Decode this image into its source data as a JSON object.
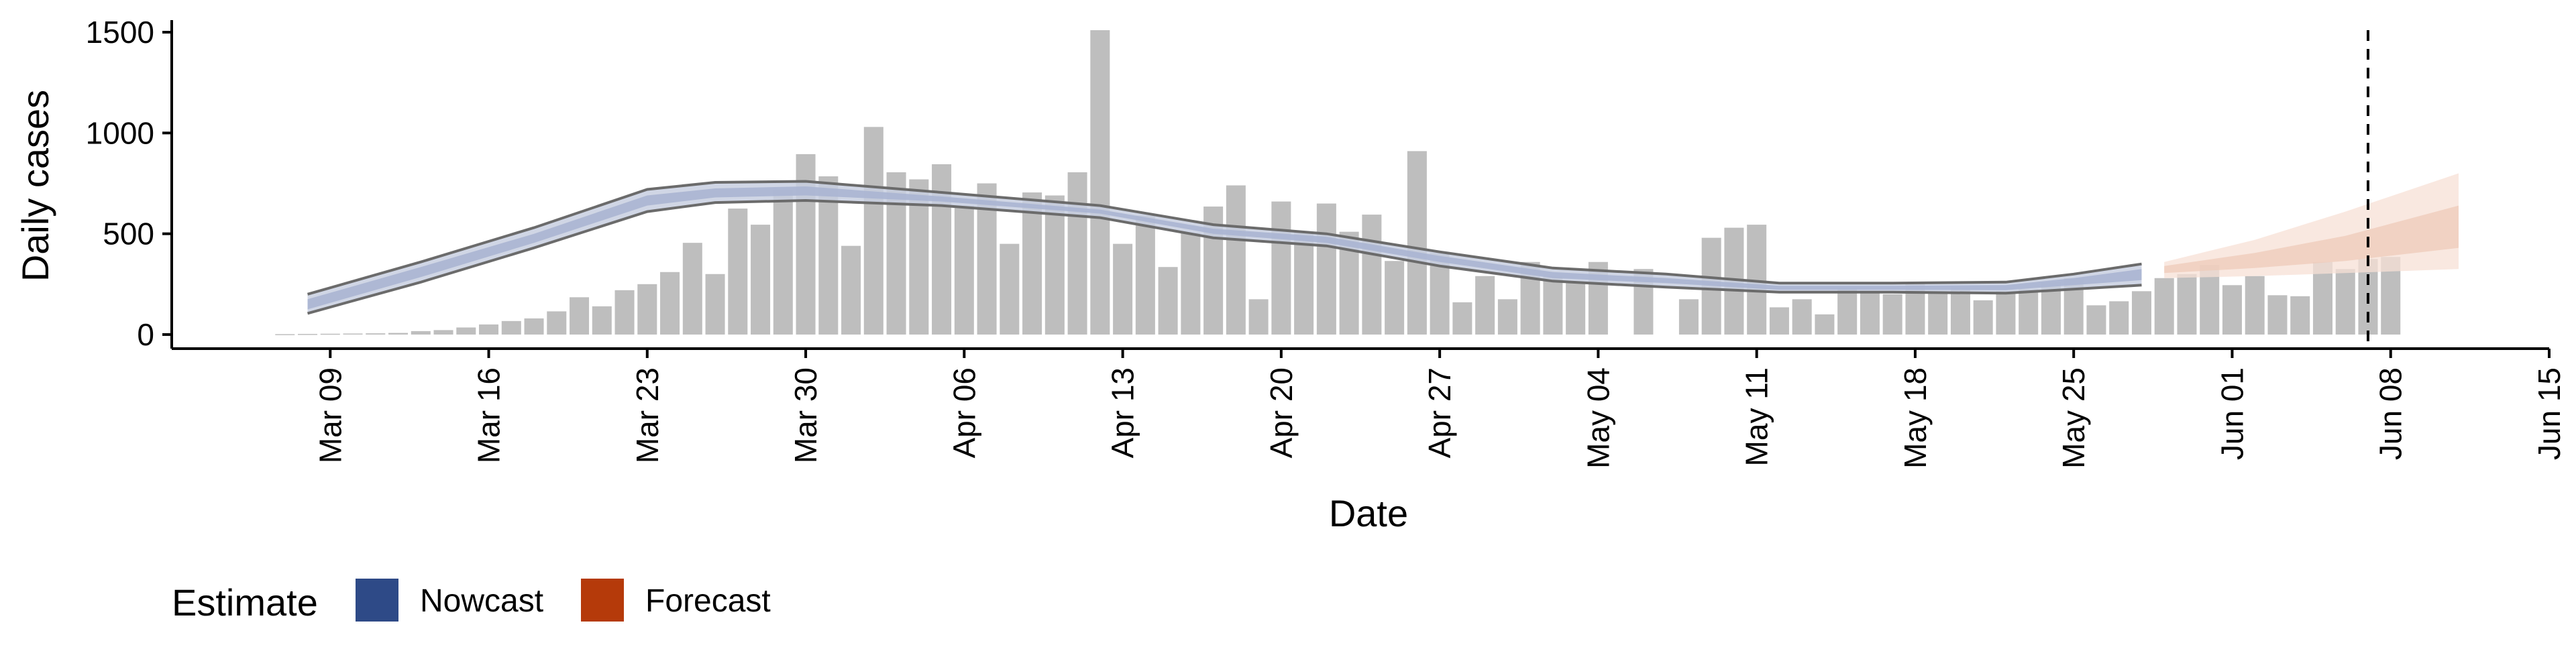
{
  "chart_data": {
    "type": "bar",
    "xlabel": "Date",
    "ylabel": "Daily cases",
    "x_range": [
      "2020-03-02",
      "2020-06-15"
    ],
    "ylim": [
      -70,
      1560
    ],
    "y_ticks": [
      0,
      500,
      1000,
      1500
    ],
    "x_ticks": [
      {
        "date": "2020-03-09",
        "label": "Mar 09"
      },
      {
        "date": "2020-03-16",
        "label": "Mar 16"
      },
      {
        "date": "2020-03-23",
        "label": "Mar 23"
      },
      {
        "date": "2020-03-30",
        "label": "Mar 30"
      },
      {
        "date": "2020-04-06",
        "label": "Apr 06"
      },
      {
        "date": "2020-04-13",
        "label": "Apr 13"
      },
      {
        "date": "2020-04-20",
        "label": "Apr 20"
      },
      {
        "date": "2020-04-27",
        "label": "Apr 27"
      },
      {
        "date": "2020-05-04",
        "label": "May 04"
      },
      {
        "date": "2020-05-11",
        "label": "May 11"
      },
      {
        "date": "2020-05-18",
        "label": "May 18"
      },
      {
        "date": "2020-05-25",
        "label": "May 25"
      },
      {
        "date": "2020-06-01",
        "label": "Jun 01"
      },
      {
        "date": "2020-06-08",
        "label": "Jun 08"
      },
      {
        "date": "2020-06-15",
        "label": "Jun 15"
      }
    ],
    "grid": false,
    "legend": {
      "title": "Estimate",
      "position": "bottom-left",
      "items": [
        {
          "label": "Nowcast",
          "color": "#2e4a87"
        },
        {
          "label": "Forecast",
          "color": "#b53a0a"
        }
      ]
    },
    "colors": {
      "bars": "#bebebe",
      "nowcast_outer": "#c8cfe1",
      "nowcast_inner": "#aab5d1",
      "forecast_outer": "#f7e0d6",
      "forecast_inner": "#eecbb9",
      "lines": "#6b6b6b",
      "vline": "#000000"
    },
    "bars_start_date": "2020-03-07",
    "bars": [
      2,
      3,
      4,
      5,
      6,
      8,
      17,
      22,
      35,
      50,
      67,
      80,
      115,
      185,
      140,
      220,
      250,
      310,
      455,
      300,
      625,
      545,
      720,
      895,
      785,
      440,
      1030,
      805,
      770,
      845,
      640,
      750,
      450,
      705,
      690,
      805,
      1510,
      450,
      590,
      335,
      505,
      635,
      740,
      175,
      660,
      510,
      650,
      510,
      595,
      365,
      910,
      405,
      160,
      290,
      175,
      360,
      290,
      255,
      360,
      0,
      325,
      0,
      175,
      480,
      530,
      545,
      135,
      175,
      100,
      230,
      210,
      200,
      255,
      215,
      235,
      170,
      215,
      225,
      260,
      280,
      145,
      165,
      215,
      280,
      300,
      345,
      245,
      290,
      195,
      190,
      360,
      325,
      375,
      385
    ],
    "nowcast": {
      "start_date": "2020-03-08",
      "end_date": "2020-05-28",
      "outer_lower": [
        [
          0,
          105
        ],
        [
          5,
          260
        ],
        [
          10,
          430
        ],
        [
          15,
          610
        ],
        [
          18,
          655
        ],
        [
          22,
          665
        ],
        [
          28,
          640
        ],
        [
          35,
          580
        ],
        [
          40,
          480
        ],
        [
          45,
          440
        ],
        [
          50,
          340
        ],
        [
          55,
          265
        ],
        [
          60,
          235
        ],
        [
          65,
          210
        ],
        [
          70,
          210
        ],
        [
          75,
          205
        ],
        [
          78,
          225
        ],
        [
          81,
          245
        ]
      ],
      "outer_upper": [
        [
          0,
          200
        ],
        [
          5,
          360
        ],
        [
          10,
          530
        ],
        [
          15,
          720
        ],
        [
          18,
          755
        ],
        [
          22,
          760
        ],
        [
          28,
          705
        ],
        [
          35,
          640
        ],
        [
          40,
          545
        ],
        [
          45,
          500
        ],
        [
          50,
          410
        ],
        [
          55,
          330
        ],
        [
          60,
          300
        ],
        [
          65,
          255
        ],
        [
          70,
          255
        ],
        [
          75,
          260
        ],
        [
          78,
          300
        ],
        [
          81,
          350
        ]
      ],
      "inner_lower": [
        [
          0,
          125
        ],
        [
          5,
          285
        ],
        [
          10,
          455
        ],
        [
          15,
          640
        ],
        [
          18,
          680
        ],
        [
          22,
          690
        ],
        [
          28,
          660
        ],
        [
          35,
          600
        ],
        [
          40,
          500
        ],
        [
          45,
          455
        ],
        [
          50,
          360
        ],
        [
          55,
          280
        ],
        [
          60,
          255
        ],
        [
          65,
          222
        ],
        [
          70,
          222
        ],
        [
          75,
          220
        ],
        [
          78,
          245
        ],
        [
          81,
          270
        ]
      ],
      "inner_upper": [
        [
          0,
          175
        ],
        [
          5,
          335
        ],
        [
          10,
          500
        ],
        [
          15,
          690
        ],
        [
          18,
          725
        ],
        [
          22,
          735
        ],
        [
          28,
          685
        ],
        [
          35,
          620
        ],
        [
          40,
          525
        ],
        [
          45,
          485
        ],
        [
          50,
          390
        ],
        [
          55,
          310
        ],
        [
          60,
          280
        ],
        [
          65,
          242
        ],
        [
          70,
          242
        ],
        [
          75,
          245
        ],
        [
          78,
          280
        ],
        [
          81,
          325
        ]
      ]
    },
    "forecast": {
      "start_date": "2020-05-29",
      "end_date": "2020-06-11",
      "outer_lower": [
        [
          0,
          280
        ],
        [
          4,
          290
        ],
        [
          8,
          305
        ],
        [
          13,
          325
        ]
      ],
      "outer_upper": [
        [
          0,
          360
        ],
        [
          4,
          470
        ],
        [
          8,
          610
        ],
        [
          13,
          800
        ]
      ],
      "inner_lower": [
        [
          0,
          305
        ],
        [
          4,
          330
        ],
        [
          8,
          365
        ],
        [
          13,
          430
        ]
      ],
      "inner_upper": [
        [
          0,
          340
        ],
        [
          4,
          405
        ],
        [
          8,
          490
        ],
        [
          13,
          640
        ]
      ]
    },
    "vline_date": "2020-06-07"
  }
}
